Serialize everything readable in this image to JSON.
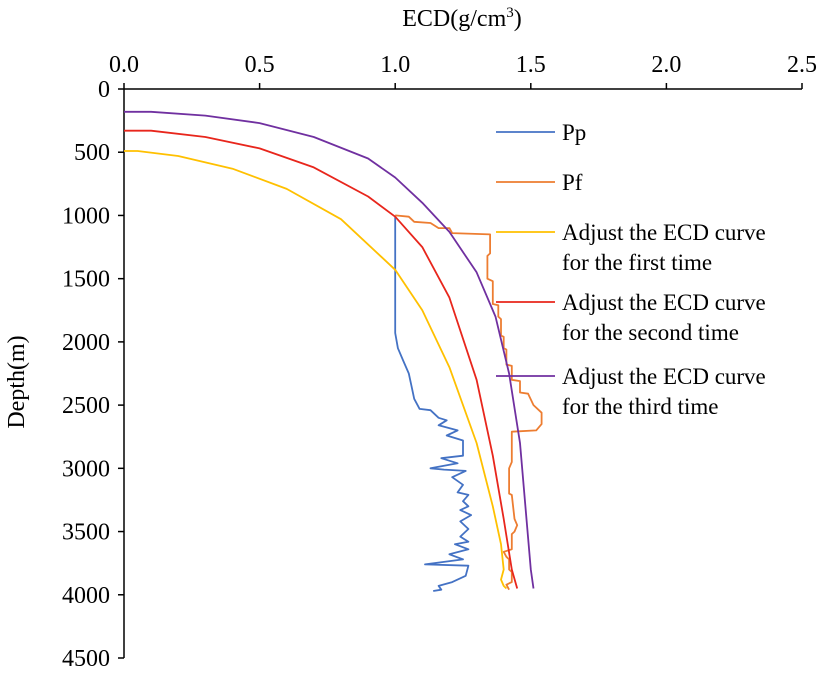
{
  "chart_data": {
    "type": "line",
    "title": "",
    "xlabel": "ECD(g/cm3)",
    "xlabel_main": "ECD(g/cm",
    "xlabel_sup": "3",
    "xlabel_end": ")",
    "ylabel": "Depth(m)",
    "xlim": [
      0,
      2.5
    ],
    "ylim": [
      0,
      4500
    ],
    "y_inverted": true,
    "x_axis_position": "top",
    "xticks": [
      0.0,
      0.5,
      1.0,
      1.5,
      2.0,
      2.5
    ],
    "xtick_labels": [
      "0.0",
      "0.5",
      "1.0",
      "1.5",
      "2.0",
      "2.5"
    ],
    "yticks": [
      0,
      500,
      1000,
      1500,
      2000,
      2500,
      3000,
      3500,
      4000,
      4500
    ],
    "ytick_labels": [
      "0",
      "500",
      "1000",
      "1500",
      "2000",
      "2500",
      "3000",
      "3500",
      "4000",
      "4500"
    ],
    "grid": false,
    "legend_position": "right",
    "series": [
      {
        "name": "Pp",
        "color": "#4472C4",
        "points": [
          [
            1.0,
            1000
          ],
          [
            1.0,
            1930
          ],
          [
            1.01,
            2050
          ],
          [
            1.03,
            2150
          ],
          [
            1.05,
            2250
          ],
          [
            1.06,
            2350
          ],
          [
            1.07,
            2450
          ],
          [
            1.09,
            2530
          ],
          [
            1.13,
            2540
          ],
          [
            1.16,
            2600
          ],
          [
            1.19,
            2620
          ],
          [
            1.16,
            2660
          ],
          [
            1.23,
            2700
          ],
          [
            1.19,
            2740
          ],
          [
            1.25,
            2780
          ],
          [
            1.25,
            2900
          ],
          [
            1.17,
            2920
          ],
          [
            1.23,
            2960
          ],
          [
            1.13,
            3000
          ],
          [
            1.18,
            3010
          ],
          [
            1.26,
            3020
          ],
          [
            1.21,
            3070
          ],
          [
            1.25,
            3130
          ],
          [
            1.23,
            3190
          ],
          [
            1.27,
            3210
          ],
          [
            1.25,
            3260
          ],
          [
            1.27,
            3300
          ],
          [
            1.24,
            3330
          ],
          [
            1.28,
            3370
          ],
          [
            1.24,
            3420
          ],
          [
            1.27,
            3480
          ],
          [
            1.24,
            3540
          ],
          [
            1.27,
            3580
          ],
          [
            1.22,
            3600
          ],
          [
            1.27,
            3640
          ],
          [
            1.2,
            3680
          ],
          [
            1.25,
            3720
          ],
          [
            1.11,
            3760
          ],
          [
            1.27,
            3770
          ],
          [
            1.26,
            3850
          ],
          [
            1.24,
            3870
          ],
          [
            1.21,
            3900
          ],
          [
            1.16,
            3930
          ],
          [
            1.17,
            3960
          ],
          [
            1.14,
            3970
          ]
        ]
      },
      {
        "name": "Pf",
        "color": "#ED7D31",
        "points": [
          [
            1.0,
            1000
          ],
          [
            1.05,
            1010
          ],
          [
            1.07,
            1050
          ],
          [
            1.13,
            1060
          ],
          [
            1.16,
            1100
          ],
          [
            1.2,
            1100
          ],
          [
            1.21,
            1140
          ],
          [
            1.35,
            1150
          ],
          [
            1.35,
            1300
          ],
          [
            1.34,
            1320
          ],
          [
            1.34,
            1500
          ],
          [
            1.36,
            1520
          ],
          [
            1.36,
            1700
          ],
          [
            1.38,
            1710
          ],
          [
            1.38,
            1800
          ],
          [
            1.39,
            1820
          ],
          [
            1.39,
            1950
          ],
          [
            1.4,
            1960
          ],
          [
            1.4,
            2050
          ],
          [
            1.41,
            2060
          ],
          [
            1.41,
            2180
          ],
          [
            1.43,
            2190
          ],
          [
            1.43,
            2300
          ],
          [
            1.46,
            2310
          ],
          [
            1.46,
            2400
          ],
          [
            1.49,
            2410
          ],
          [
            1.51,
            2500
          ],
          [
            1.54,
            2560
          ],
          [
            1.54,
            2650
          ],
          [
            1.52,
            2700
          ],
          [
            1.43,
            2710
          ],
          [
            1.43,
            2950
          ],
          [
            1.42,
            3000
          ],
          [
            1.42,
            3200
          ],
          [
            1.43,
            3210
          ],
          [
            1.44,
            3400
          ],
          [
            1.45,
            3450
          ],
          [
            1.44,
            3500
          ],
          [
            1.43,
            3520
          ],
          [
            1.43,
            3640
          ],
          [
            1.4,
            3660
          ],
          [
            1.41,
            3700
          ],
          [
            1.42,
            3720
          ],
          [
            1.42,
            3800
          ],
          [
            1.43,
            3820
          ],
          [
            1.43,
            3900
          ],
          [
            1.41,
            3920
          ],
          [
            1.42,
            3960
          ]
        ]
      },
      {
        "name": "Adjust the ECD curve for the first time",
        "name_line1": "Adjust the ECD curve",
        "name_line2": "for the first time",
        "color": "#FFC000",
        "points": [
          [
            0.0,
            490
          ],
          [
            0.05,
            490
          ],
          [
            0.2,
            530
          ],
          [
            0.4,
            630
          ],
          [
            0.6,
            790
          ],
          [
            0.8,
            1030
          ],
          [
            1.0,
            1430
          ],
          [
            1.1,
            1750
          ],
          [
            1.2,
            2200
          ],
          [
            1.3,
            2800
          ],
          [
            1.36,
            3300
          ],
          [
            1.39,
            3600
          ],
          [
            1.4,
            3800
          ],
          [
            1.39,
            3880
          ],
          [
            1.4,
            3930
          ],
          [
            1.41,
            3950
          ]
        ]
      },
      {
        "name": "Adjust the ECD curve for the second time",
        "name_line1": "Adjust the ECD curve",
        "name_line2": "for the second time",
        "color": "#E8261C",
        "points": [
          [
            0.0,
            330
          ],
          [
            0.1,
            330
          ],
          [
            0.3,
            380
          ],
          [
            0.5,
            470
          ],
          [
            0.7,
            620
          ],
          [
            0.9,
            850
          ],
          [
            1.0,
            1010
          ],
          [
            1.1,
            1250
          ],
          [
            1.2,
            1650
          ],
          [
            1.3,
            2300
          ],
          [
            1.36,
            2900
          ],
          [
            1.4,
            3400
          ],
          [
            1.43,
            3800
          ],
          [
            1.45,
            3950
          ]
        ]
      },
      {
        "name": "Adjust the ECD curve for the third time",
        "name_line1": "Adjust the ECD curve",
        "name_line2": "for the third time",
        "color": "#7030A0",
        "points": [
          [
            0.0,
            180
          ],
          [
            0.1,
            180
          ],
          [
            0.3,
            210
          ],
          [
            0.5,
            270
          ],
          [
            0.7,
            380
          ],
          [
            0.9,
            550
          ],
          [
            1.0,
            700
          ],
          [
            1.1,
            900
          ],
          [
            1.2,
            1130
          ],
          [
            1.3,
            1450
          ],
          [
            1.37,
            1800
          ],
          [
            1.42,
            2250
          ],
          [
            1.46,
            2800
          ],
          [
            1.48,
            3300
          ],
          [
            1.5,
            3800
          ],
          [
            1.51,
            3950
          ]
        ]
      }
    ]
  }
}
